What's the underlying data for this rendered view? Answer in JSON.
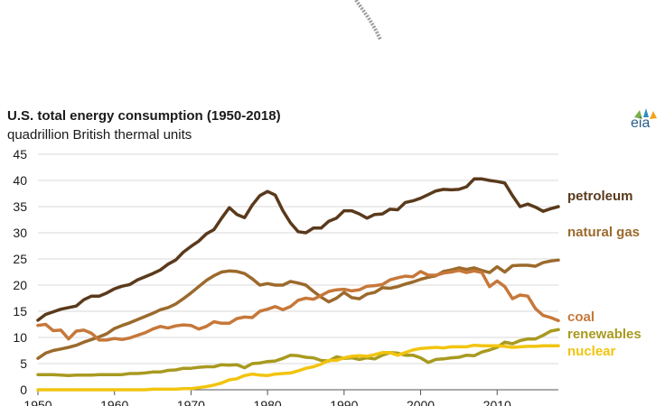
{
  "chart_data": {
    "type": "line",
    "title": "U.S. total energy consumption (1950-2018)",
    "subtitle": "quadrillion British thermal units",
    "logo_text": "eia",
    "xlabel": "",
    "ylabel": "",
    "xlim": [
      1950,
      2018
    ],
    "ylim": [
      0,
      45
    ],
    "y_ticks": [
      "0",
      "5",
      "10",
      "15",
      "20",
      "25",
      "30",
      "35",
      "40",
      "45"
    ],
    "x_ticks": [
      "1950",
      "1960",
      "1970",
      "1980",
      "1990",
      "2000",
      "2010"
    ],
    "grid": "horizontal",
    "legend": "direct labels at right",
    "x": [
      1950,
      1951,
      1952,
      1953,
      1954,
      1955,
      1956,
      1957,
      1958,
      1959,
      1960,
      1961,
      1962,
      1963,
      1964,
      1965,
      1966,
      1967,
      1968,
      1969,
      1970,
      1971,
      1972,
      1973,
      1974,
      1975,
      1976,
      1977,
      1978,
      1979,
      1980,
      1981,
      1982,
      1983,
      1984,
      1985,
      1986,
      1987,
      1988,
      1989,
      1990,
      1991,
      1992,
      1993,
      1994,
      1995,
      1996,
      1997,
      1998,
      1999,
      2000,
      2001,
      2002,
      2003,
      2004,
      2005,
      2006,
      2007,
      2008,
      2009,
      2010,
      2011,
      2012,
      2013,
      2014,
      2015,
      2016,
      2017,
      2018
    ],
    "series": [
      {
        "name": "petroleum",
        "color": "#5a3a1c",
        "values": [
          13.3,
          14.4,
          14.9,
          15.4,
          15.7,
          16.0,
          17.2,
          17.9,
          17.9,
          18.5,
          19.3,
          19.8,
          20.1,
          21.0,
          21.6,
          22.2,
          22.9,
          24.0,
          24.8,
          26.3,
          27.4,
          28.4,
          29.8,
          30.6,
          32.8,
          34.8,
          33.5,
          32.9,
          35.3,
          37.1,
          37.9,
          37.2,
          34.2,
          31.9,
          30.2,
          30.0,
          30.9,
          30.9,
          32.2,
          32.8,
          34.2,
          34.2,
          33.6,
          32.8,
          33.5,
          33.6,
          34.5,
          34.4,
          35.8,
          36.1,
          36.6,
          37.3,
          38.0,
          38.3,
          38.2,
          38.3,
          38.8,
          40.3,
          40.3,
          40.0,
          39.8,
          39.5,
          37.1,
          35.0,
          35.5,
          34.9,
          34.1,
          34.6,
          35.0
        ]
      },
      {
        "name": "natural gas",
        "color": "#9b6a2c",
        "values": [
          6.0,
          7.0,
          7.5,
          7.8,
          8.1,
          8.5,
          9.1,
          9.6,
          10.1,
          10.7,
          11.7,
          12.3,
          12.8,
          13.4,
          14.0,
          14.6,
          15.3,
          15.7,
          16.4,
          17.4,
          18.5,
          19.7,
          20.9,
          21.8,
          22.5,
          22.7,
          22.6,
          22.2,
          21.2,
          20.0,
          20.3,
          20.0,
          20.0,
          20.7,
          20.4,
          20.0,
          18.8,
          17.7,
          16.8,
          17.5,
          18.6,
          17.6,
          17.4,
          18.3,
          18.6,
          19.5,
          19.4,
          19.7,
          20.2,
          20.6,
          21.1,
          21.5,
          21.8,
          22.6,
          22.9,
          23.3,
          23.0,
          23.3,
          22.8,
          22.4,
          23.5,
          22.5,
          23.7,
          23.8,
          23.8,
          23.6,
          24.3,
          24.6,
          24.8
        ]
      },
      {
        "name": "coal",
        "color": "#c6783a",
        "values": [
          12.3,
          12.5,
          11.3,
          11.4,
          9.7,
          11.2,
          11.4,
          10.8,
          9.5,
          9.5,
          9.8,
          9.6,
          9.9,
          10.4,
          10.9,
          11.6,
          12.1,
          11.8,
          12.2,
          12.4,
          12.3,
          11.6,
          12.1,
          13.0,
          12.7,
          12.7,
          13.6,
          13.9,
          13.8,
          15.0,
          15.4,
          15.9,
          15.3,
          15.9,
          17.1,
          17.5,
          17.3,
          18.0,
          18.8,
          19.1,
          19.2,
          18.9,
          19.1,
          19.8,
          19.9,
          20.1,
          21.0,
          21.4,
          21.7,
          21.6,
          22.6,
          21.9,
          21.9,
          22.3,
          22.5,
          22.8,
          22.4,
          22.7,
          22.4,
          19.7,
          20.8,
          19.7,
          17.4,
          18.1,
          17.9,
          15.5,
          14.2,
          13.8,
          13.2
        ]
      },
      {
        "name": "renewables",
        "color": "#a89a20",
        "values": [
          2.9,
          2.9,
          2.9,
          2.8,
          2.7,
          2.8,
          2.8,
          2.8,
          2.9,
          2.9,
          2.9,
          2.9,
          3.1,
          3.1,
          3.2,
          3.4,
          3.4,
          3.7,
          3.8,
          4.1,
          4.1,
          4.3,
          4.4,
          4.4,
          4.8,
          4.7,
          4.8,
          4.2,
          5.0,
          5.1,
          5.4,
          5.5,
          6.0,
          6.6,
          6.5,
          6.2,
          6.1,
          5.6,
          5.5,
          6.3,
          6.0,
          6.1,
          5.8,
          6.1,
          5.9,
          6.6,
          7.1,
          7.0,
          6.6,
          6.6,
          6.1,
          5.2,
          5.8,
          5.9,
          6.1,
          6.2,
          6.6,
          6.5,
          7.2,
          7.6,
          8.1,
          9.1,
          8.8,
          9.4,
          9.7,
          9.7,
          10.4,
          11.2,
          11.5
        ]
      },
      {
        "name": "nuclear",
        "color": "#f2c40f",
        "values": [
          0,
          0,
          0,
          0,
          0,
          0,
          0,
          0,
          0,
          0,
          0,
          0,
          0,
          0,
          0,
          0.1,
          0.1,
          0.1,
          0.1,
          0.2,
          0.2,
          0.4,
          0.6,
          0.9,
          1.3,
          1.9,
          2.1,
          2.7,
          3.0,
          2.8,
          2.7,
          3.0,
          3.1,
          3.2,
          3.6,
          4.1,
          4.4,
          4.9,
          5.6,
          5.6,
          6.1,
          6.4,
          6.5,
          6.4,
          6.7,
          7.1,
          7.1,
          6.6,
          7.1,
          7.6,
          7.9,
          8.0,
          8.1,
          8.0,
          8.2,
          8.2,
          8.2,
          8.5,
          8.4,
          8.4,
          8.4,
          8.3,
          8.1,
          8.2,
          8.3,
          8.3,
          8.4,
          8.4,
          8.4
        ]
      }
    ]
  }
}
